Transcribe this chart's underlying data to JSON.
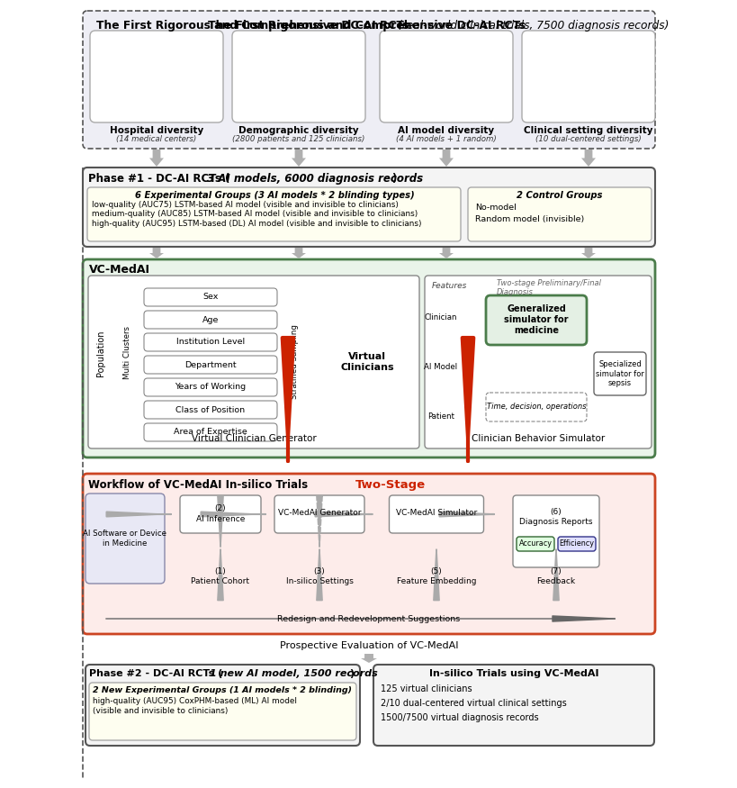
{
  "title_bold": "The First Rigorous and Comprehensive DC-AI RCTs ",
  "title_italic": "(real-world clinical trials, 7500 diagnosis records)",
  "bg_main": "#eeeef5",
  "diversity_labels": [
    "Hospital diversity",
    "Demographic diversity",
    "AI model diversity",
    "Clinical setting diversity"
  ],
  "diversity_subs": [
    "(14 medical centers)",
    "(2800 patients and 125 clinicians)",
    "(4 AI models + 1 random)",
    "(10 dual-centered settings)"
  ],
  "phase1_bold": "Phase #1 - DC-AI RCTs (",
  "phase1_italic": "3 AI models, 6000 diagnosis records",
  "phase1_close": ")",
  "exp_title": "6 Experimental Groups (3 AI models * 2 blinding types)",
  "exp_lines": [
    "low-quality (AUC75) LSTM-based AI model (visible and invisible to clinicians)",
    "medium-quality (AUC85) LSTM-based AI model (visible and invisible to clinicians)",
    "high-quality (AUC95) LSTM-based (DL) AI model (visible and invisible to clinicians)"
  ],
  "ctrl_title": "2 Control Groups",
  "ctrl_lines": [
    "No-model",
    "Random model (invisible)"
  ],
  "vcmedai_title": "VC-MedAI",
  "vcg_title": "Virtual Clinician Generator",
  "cbs_title": "Clinician Behavior Simulator",
  "pop_label": "Population",
  "mc_label": "Multi Clusters",
  "ss_label": "Stratified Sampling",
  "vc_label": "Virtual\nClinicians",
  "features_label": "Features",
  "two_stage_label": "Two-stage Preliminary/Final\nDiagnosis",
  "gen_sim": "Generalized\nsimulator for\nmedicine",
  "spec_sim": "Specialized\nsimulator for\nsepsis",
  "time_label": "Time, decision, operations",
  "clinician_label": "Clinician",
  "ai_model_label": "AI Model",
  "patient_label": "Patient",
  "vc_features": [
    "Sex",
    "Age",
    "Institution Level",
    "Department",
    "Years of Working",
    "Class of Position",
    "Area of Expertise"
  ],
  "workflow_title": "Workflow of VC-MedAI In-silico Trials",
  "two_stage_red": "Two-Stage",
  "ai_sw_label": "AI Software or Device\nin Medicine",
  "ai_inf_label": "AI Inference",
  "vcg_label": "VC-MedAI Generator",
  "vcs_label": "VC-MedAI Simulator",
  "dr_label": "Diagnosis Reports",
  "pc_label": "Patient Cohort",
  "is_label": "In-silico Settings",
  "fe_label": "Feature Embedding",
  "fb_label": "Feedback",
  "acc_label": "Accuracy",
  "eff_label": "Efficiency",
  "redesign_label": "Redesign and Redevelopment Suggestions",
  "prospective_label": "Prospective Evaluation of VC-MedAI",
  "phase2_bold": "Phase #2 - DC-AI RCTs (",
  "phase2_italic": "1 new AI model, 1500 records",
  "phase2_close": ")",
  "phase2_exp": "2 New Experimental Groups (1 AI models * 2 blinding)",
  "phase2_line1": "high-quality (AUC95) CoxPHM-based (ML) AI model",
  "phase2_line2": "(visible and invisible to clinicians)",
  "insilico_title": "In-silico Trials using VC-MedAI",
  "insilico_lines": [
    "125 virtual clinicians",
    "2/10 dual-centered virtual clinical settings",
    "1500/7500 virtual diagnosis records"
  ],
  "color_gray_arrow": "#b0b0b0",
  "color_red_arrow": "#cc2200",
  "color_green_border": "#4a7c4a",
  "color_green_bg": "#eaf4ea",
  "color_yellow_bg": "#fefef0",
  "color_workflow_bg": "#fdecea",
  "color_workflow_border": "#cc4422",
  "color_phase_bg": "#f4f4f4",
  "color_phase_border": "#555555"
}
